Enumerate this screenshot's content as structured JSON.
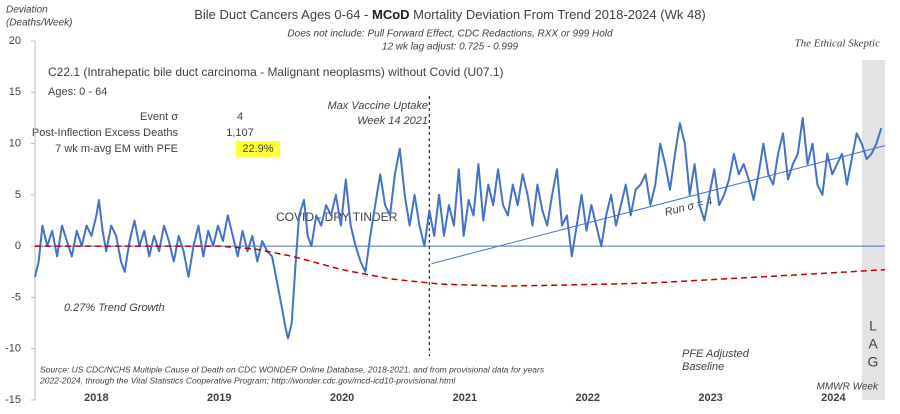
{
  "chart_data": {
    "type": "line",
    "title_parts": [
      "Bile Duct Cancers Ages 0-64 - ",
      "MCoD",
      " Mortality Deviation From Trend  2018-2024 (Wk 48)"
    ],
    "subtitle": [
      "Does not include: Pull Forward Effect,  CDC Redactions, RXX or 999 Hold",
      "12 wk lag adjust: 0.725 - 0.999"
    ],
    "brand": "The Ethical Skeptic",
    "ylabel": [
      "Deviation",
      "(Deaths/Week)"
    ],
    "xlabel": "MMWR Week",
    "series_title": "C22.1 (Intrahepatic bile duct carcinoma - Malignant neoplasms) without Covid (U07.1)",
    "ages": "Ages: 0 - 64",
    "stats": [
      [
        "Event σ",
        "4"
      ],
      [
        "Post-Inflection Excess Deaths",
        "1,107"
      ],
      [
        "7 wk m-avg EM with PFE",
        "22.9%"
      ]
    ],
    "vaccine_note": [
      "Max Vaccine Uptake",
      "Week 14 2021"
    ],
    "vaccine_line": 2021.21,
    "covid_note": "COVID - DRY TINDER",
    "trend_note": "0.27% Trend Growth",
    "run_note": "Run σ = 4",
    "pfe_note": [
      "PFE Adjusted",
      "Baseline"
    ],
    "lag_note": [
      "L",
      "A",
      "G"
    ],
    "source": [
      "Source: US CDC/NCHS Multiple Cause of Death on CDC WONDER Online Database, 2018-2021, and from provisional data for years",
      "2022-2024, through the Vital Statistics Cooperative Program; http://wonder.cdc.gov/mcd-icd10-provisional.html"
    ],
    "xlim": [
      2018,
      2024.92
    ],
    "xticks": [
      {
        "value": 2018.5,
        "label": "2018"
      },
      {
        "value": 2019.5,
        "label": "2019"
      },
      {
        "value": 2020.5,
        "label": "2020"
      },
      {
        "value": 2021.5,
        "label": "2021"
      },
      {
        "value": 2022.5,
        "label": "2022"
      },
      {
        "value": 2023.5,
        "label": "2023"
      },
      {
        "value": 2024.5,
        "label": "2024"
      }
    ],
    "ylim": [
      -15,
      20
    ],
    "yticks": [
      -15,
      -10,
      -5,
      0,
      5,
      10,
      15,
      20
    ],
    "zero_line": 0,
    "grid": false,
    "series": [
      {
        "color": "#4472c4",
        "width": 2,
        "dash": false,
        "x": [
          2018.0,
          2018.03,
          2018.06,
          2018.1,
          2018.14,
          2018.18,
          2018.22,
          2018.26,
          2018.3,
          2018.34,
          2018.38,
          2018.42,
          2018.46,
          2018.5,
          2018.52,
          2018.55,
          2018.58,
          2018.62,
          2018.66,
          2018.7,
          2018.73,
          2018.77,
          2018.81,
          2018.85,
          2018.89,
          2018.93,
          2018.97,
          2019.01,
          2019.05,
          2019.09,
          2019.13,
          2019.17,
          2019.21,
          2019.25,
          2019.29,
          2019.33,
          2019.37,
          2019.41,
          2019.45,
          2019.49,
          2019.53,
          2019.57,
          2019.61,
          2019.65,
          2019.69,
          2019.73,
          2019.77,
          2019.81,
          2019.85,
          2019.89,
          2019.93,
          2019.97,
          2020.01,
          2020.04,
          2020.06,
          2020.09,
          2020.12,
          2020.15,
          2020.19,
          2020.22,
          2020.25,
          2020.29,
          2020.33,
          2020.37,
          2020.41,
          2020.45,
          2020.49,
          2020.53,
          2020.57,
          2020.61,
          2020.65,
          2020.69,
          2020.73,
          2020.77,
          2020.81,
          2020.85,
          2020.89,
          2020.93,
          2020.97,
          2021.01,
          2021.05,
          2021.09,
          2021.13,
          2021.17,
          2021.21,
          2021.25,
          2021.29,
          2021.33,
          2021.37,
          2021.41,
          2021.45,
          2021.49,
          2021.53,
          2021.57,
          2021.61,
          2021.65,
          2021.69,
          2021.73,
          2021.77,
          2021.81,
          2021.85,
          2021.89,
          2021.93,
          2021.97,
          2022.01,
          2022.05,
          2022.09,
          2022.13,
          2022.17,
          2022.21,
          2022.25,
          2022.29,
          2022.33,
          2022.37,
          2022.41,
          2022.45,
          2022.49,
          2022.53,
          2022.57,
          2022.61,
          2022.65,
          2022.69,
          2022.73,
          2022.77,
          2022.81,
          2022.85,
          2022.89,
          2022.93,
          2022.97,
          2023.01,
          2023.05,
          2023.09,
          2023.13,
          2023.17,
          2023.21,
          2023.25,
          2023.29,
          2023.33,
          2023.37,
          2023.41,
          2023.45,
          2023.49,
          2023.53,
          2023.57,
          2023.61,
          2023.65,
          2023.69,
          2023.73,
          2023.77,
          2023.81,
          2023.85,
          2023.89,
          2023.93,
          2023.97,
          2024.01,
          2024.05,
          2024.09,
          2024.13,
          2024.17,
          2024.21,
          2024.25,
          2024.29,
          2024.33,
          2024.37,
          2024.41,
          2024.45,
          2024.49,
          2024.53,
          2024.57,
          2024.61,
          2024.65,
          2024.69,
          2024.73,
          2024.77,
          2024.81,
          2024.85,
          2024.89
        ],
        "values": [
          -3,
          -1.5,
          2,
          0,
          1.5,
          -1,
          2,
          0.5,
          -1,
          1.5,
          0,
          2,
          1,
          3,
          4.5,
          1.5,
          -0.5,
          2,
          1,
          -1.5,
          -2.5,
          0.5,
          2.5,
          0,
          1.5,
          -1,
          1,
          -0.5,
          2,
          0.5,
          -1.5,
          1,
          -0.5,
          -3,
          0,
          2,
          -1,
          1.5,
          0,
          2,
          0.5,
          3,
          1,
          -1,
          1.5,
          -0.5,
          1,
          -1.5,
          0.5,
          -0.5,
          -1,
          -3.5,
          -6,
          -8,
          -9,
          -7.5,
          -2,
          3,
          4.5,
          1,
          0,
          3,
          2,
          4,
          3,
          5,
          2,
          6.5,
          2,
          0,
          -1.5,
          -2.5,
          1,
          4,
          7,
          4,
          3,
          7,
          9.5,
          5,
          2,
          5,
          2,
          0,
          3.5,
          1,
          5,
          1,
          4,
          2,
          7.5,
          1,
          4.5,
          3,
          8,
          2.5,
          6,
          4,
          7.5,
          4,
          3,
          6,
          4,
          7,
          5,
          2,
          6,
          3.5,
          2,
          5,
          7.5,
          2,
          3,
          -1,
          2,
          5,
          1.5,
          4,
          2,
          0,
          3,
          5,
          2,
          4,
          6,
          3,
          5.5,
          6,
          7,
          4,
          6,
          10,
          8,
          5.5,
          9,
          12,
          10,
          5,
          8,
          4,
          2.5,
          5,
          7.5,
          4,
          5,
          6.5,
          9,
          7,
          8,
          6.5,
          4.5,
          7,
          10,
          7,
          6,
          9,
          11,
          6.5,
          8,
          9,
          12.5,
          8,
          10,
          6,
          5,
          9,
          7,
          8,
          9,
          6,
          8.5,
          11,
          10,
          8.5,
          9,
          10,
          11.5
        ]
      },
      {
        "color": "#4472c4",
        "width": 1,
        "dash": false,
        "x": [
          2021.23,
          2024.92
        ],
        "values": [
          -1.7,
          9.8
        ]
      },
      {
        "color": "#c00000",
        "width": 1.5,
        "dash": true,
        "x": [
          2018,
          2019.5,
          2019.8,
          2020.1,
          2020.5,
          2020.9,
          2021.3,
          2021.8,
          2022.3,
          2023,
          2023.6,
          2024.2,
          2024.92
        ],
        "values": [
          0,
          0,
          -0.3,
          -1,
          -2.3,
          -3.2,
          -3.7,
          -3.9,
          -3.8,
          -3.6,
          -3.2,
          -2.8,
          -2.3
        ]
      }
    ]
  }
}
